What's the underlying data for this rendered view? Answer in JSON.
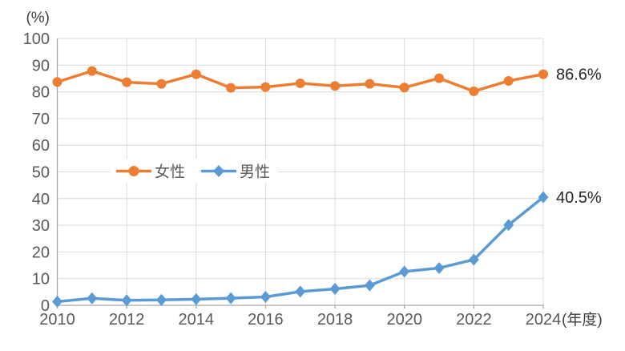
{
  "chart_data": {
    "type": "line",
    "title": "",
    "x": [
      2010,
      2011,
      2012,
      2013,
      2014,
      2015,
      2016,
      2017,
      2018,
      2019,
      2020,
      2021,
      2022,
      2023,
      2024
    ],
    "series": [
      {
        "name": "女性",
        "marker": "circle",
        "color": "#ED7D31",
        "values": [
          83.7,
          87.8,
          83.6,
          83.0,
          86.6,
          81.5,
          81.8,
          83.2,
          82.2,
          83.0,
          81.6,
          85.1,
          80.2,
          84.1,
          86.6
        ],
        "end_label": "86.6%"
      },
      {
        "name": "男性",
        "marker": "diamond",
        "color": "#5B9BD5",
        "values": [
          1.38,
          2.63,
          1.89,
          2.03,
          2.3,
          2.65,
          3.16,
          5.14,
          6.16,
          7.48,
          12.65,
          13.97,
          17.13,
          30.1,
          40.5
        ],
        "end_label": "40.5%"
      }
    ],
    "ylim": [
      0,
      100
    ],
    "yticks": [
      0,
      10,
      20,
      30,
      40,
      50,
      60,
      70,
      80,
      90,
      100
    ],
    "xticks": [
      2010,
      2012,
      2014,
      2016,
      2018,
      2020,
      2022,
      2024
    ],
    "y_unit_label": "(%)",
    "x_unit_label": "(年度)",
    "grid": true,
    "legend_position": "inside-left-middle"
  },
  "colors": {
    "background": "#FFFFFF",
    "gridline": "#D9D9D9",
    "axis_line": "#A6A6A6",
    "tick_text": "#595959",
    "unit_text": "#3F3F3F",
    "data_label_text": "#262626",
    "series_female": "#ED7D31",
    "series_male": "#5B9BD5"
  }
}
